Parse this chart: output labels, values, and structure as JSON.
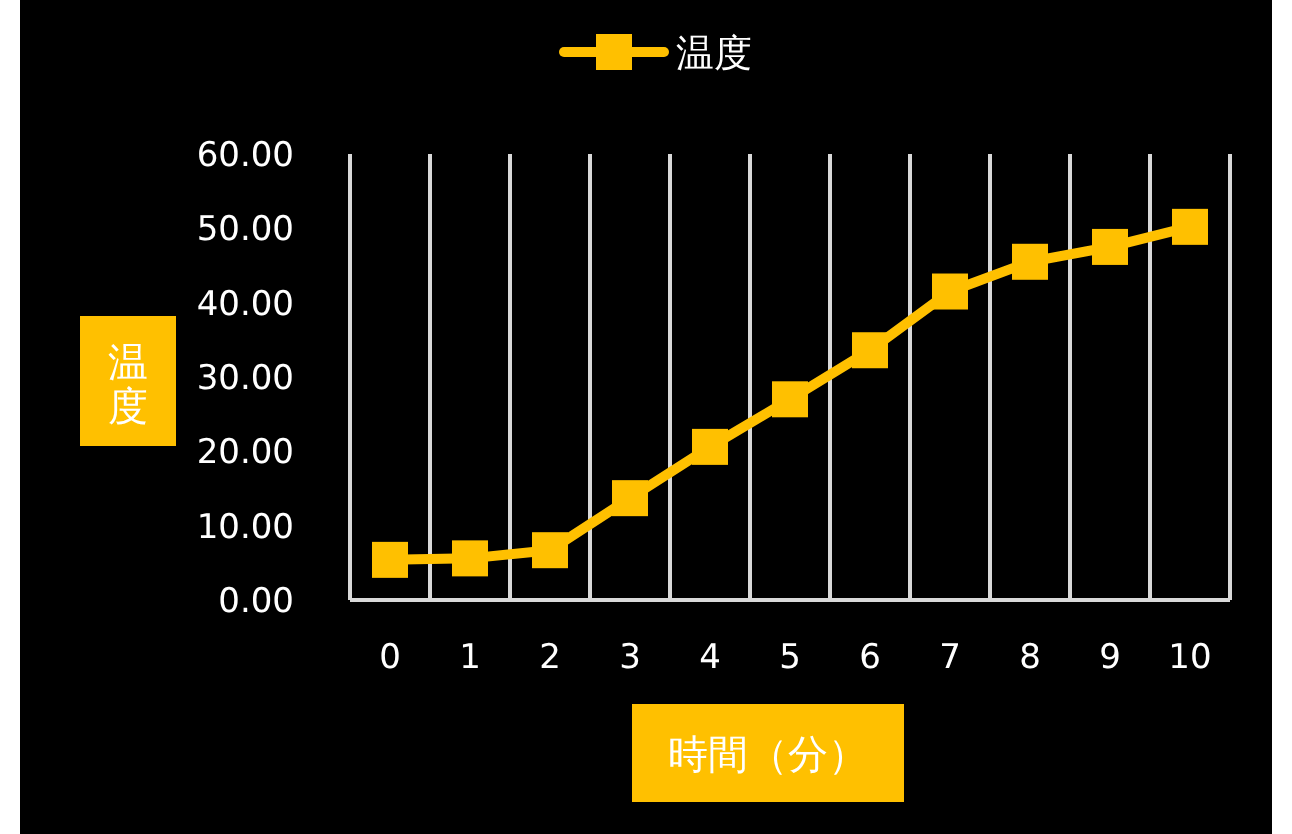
{
  "chart_data": {
    "type": "line",
    "xlabel": "時間（分）",
    "ylabel": "温度",
    "categories": [
      "0",
      "1",
      "2",
      "3",
      "4",
      "5",
      "6",
      "7",
      "8",
      "9",
      "10"
    ],
    "series": [
      {
        "name": "温度",
        "color": "#ffc000",
        "values": [
          5.4,
          5.6,
          6.7,
          13.7,
          20.6,
          27.0,
          33.6,
          41.5,
          45.5,
          47.5,
          50.2
        ]
      }
    ],
    "ylim": [
      0,
      60
    ],
    "yticks": [
      {
        "value": 0,
        "label": "0.00"
      },
      {
        "value": 10,
        "label": "10.00"
      },
      {
        "value": 20,
        "label": "20.00"
      },
      {
        "value": 30,
        "label": "30.00"
      },
      {
        "value": 40,
        "label": "40.00"
      },
      {
        "value": 50,
        "label": "50.00"
      },
      {
        "value": 60,
        "label": "60.00"
      }
    ],
    "grid": "x",
    "legend": "top",
    "marker": "square",
    "line_style": "solid"
  }
}
